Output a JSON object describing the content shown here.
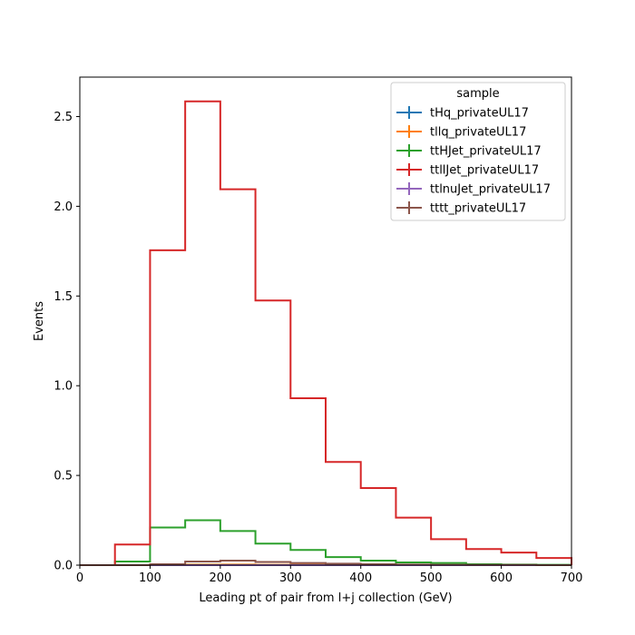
{
  "chart_data": {
    "type": "histogram-step",
    "title": "",
    "xlabel": "Leading pt of pair from l+j collection (GeV)",
    "ylabel": "Events",
    "xlim": [
      0,
      700
    ],
    "ylim": [
      0,
      2.72
    ],
    "xticks": [
      0,
      100,
      200,
      300,
      400,
      500,
      600,
      700
    ],
    "xtick_labels": [
      "0",
      "100",
      "200",
      "300",
      "400",
      "500",
      "600",
      "700"
    ],
    "yticks": [
      0.0,
      0.5,
      1.0,
      1.5,
      2.0,
      2.5
    ],
    "ytick_labels": [
      "0.0",
      "0.5",
      "1.0",
      "1.5",
      "2.0",
      "2.5"
    ],
    "grid": false,
    "bin_edges": [
      0,
      50,
      100,
      150,
      200,
      250,
      300,
      350,
      400,
      450,
      500,
      550,
      600,
      650,
      700
    ],
    "legend": {
      "title": "sample",
      "placement": "upper right"
    },
    "series": [
      {
        "name": "tHq_privateUL17",
        "color": "#1f77b4",
        "values": [
          0,
          0,
          0,
          0,
          0,
          0,
          0,
          0,
          0,
          0,
          0,
          0,
          0,
          0
        ]
      },
      {
        "name": "tllq_privateUL17",
        "color": "#ff7f0e",
        "values": [
          0,
          0,
          0.002,
          0.003,
          0.003,
          0.002,
          0.002,
          0.001,
          0.001,
          0.001,
          0,
          0,
          0,
          0
        ]
      },
      {
        "name": "ttHJet_privateUL17",
        "color": "#2ca02c",
        "values": [
          0,
          0.02,
          0.21,
          0.25,
          0.19,
          0.12,
          0.085,
          0.045,
          0.025,
          0.015,
          0.012,
          0.005,
          0.003,
          0.002
        ]
      },
      {
        "name": "ttllJet_privateUL17",
        "color": "#d62728",
        "values": [
          0,
          0.115,
          1.755,
          2.585,
          2.095,
          1.475,
          0.93,
          0.575,
          0.43,
          0.265,
          0.145,
          0.09,
          0.07,
          0.04
        ]
      },
      {
        "name": "ttlnuJet_privateUL17",
        "color": "#9467bd",
        "values": [
          0,
          0,
          0,
          0,
          0,
          0,
          0,
          0,
          0,
          0,
          0,
          0,
          0,
          0
        ]
      },
      {
        "name": "tttt_privateUL17",
        "color": "#8c564b",
        "values": [
          0,
          0,
          0.005,
          0.02,
          0.025,
          0.018,
          0.012,
          0.008,
          0.005,
          0.003,
          0.002,
          0.001,
          0.001,
          0
        ]
      }
    ]
  }
}
